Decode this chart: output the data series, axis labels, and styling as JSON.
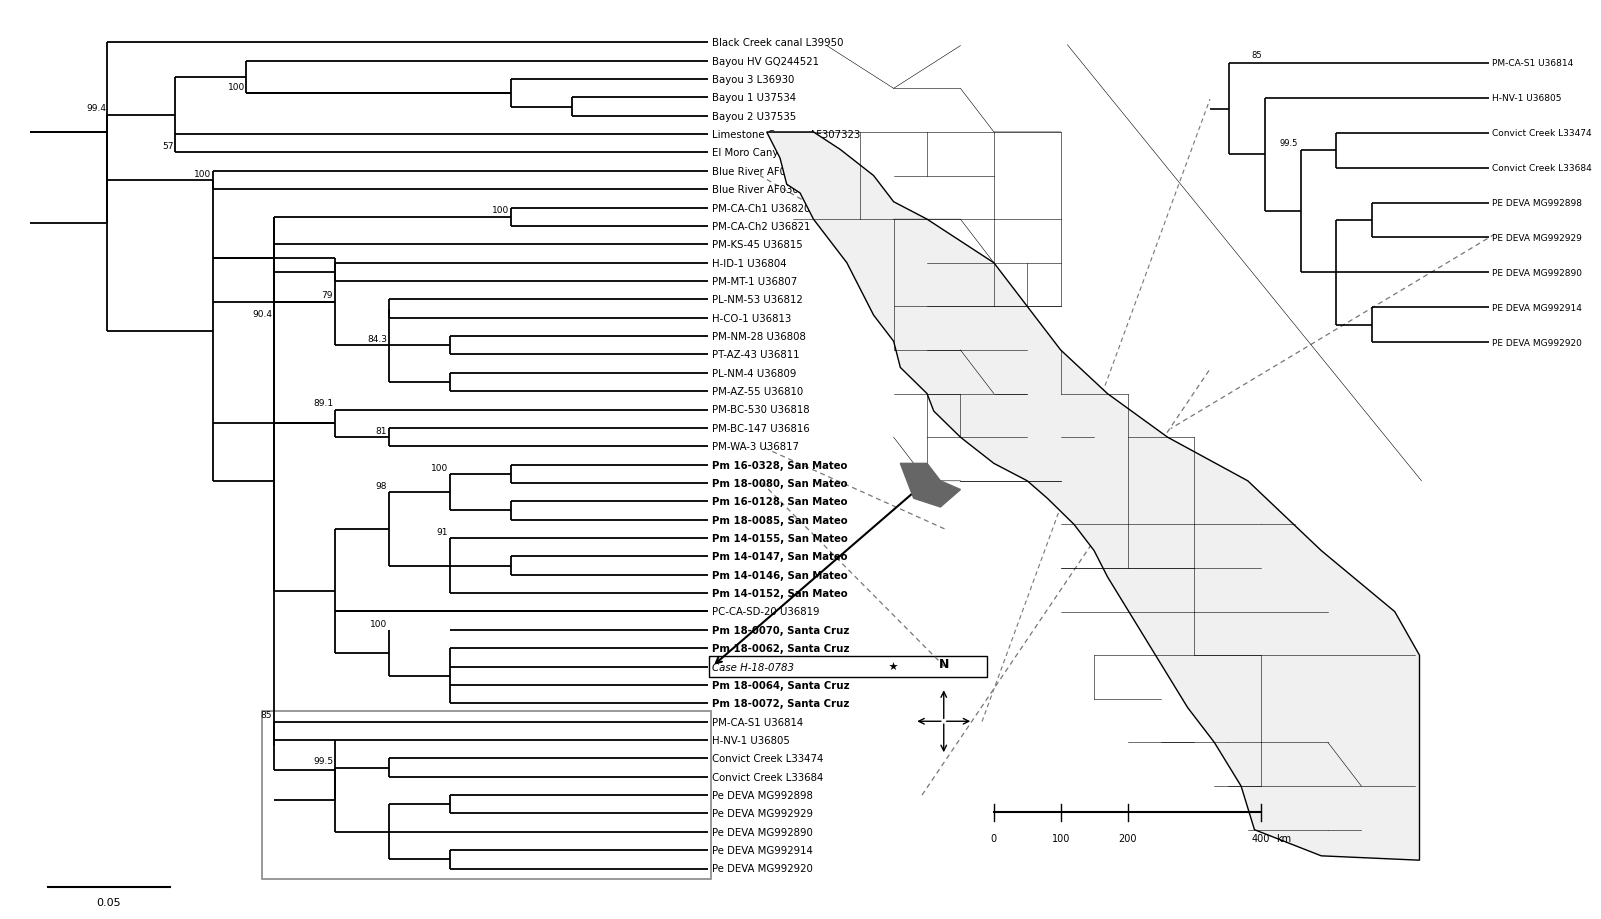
{
  "leaves": [
    "Black Creek canal L39950",
    "Bayou HV GQ244521",
    "Bayou 3 L36930",
    "Bayou 1 U37534",
    "Bayou 2 U37535",
    "Limestone Canyon AF307323",
    "El Moro Canyon U26828",
    "Blue River AF030551",
    "Blue River AF030552",
    "PM-CA-Ch1 U36820",
    "PM-CA-Ch2 U36821",
    "PM-KS-45 U36815",
    "H-ID-1 U36804",
    "PM-MT-1 U36807",
    "PL-NM-53 U36812",
    "H-CO-1 U36813",
    "PM-NM-28 U36808",
    "PT-AZ-43 U36811",
    "PL-NM-4 U36809",
    "PM-AZ-55 U36810",
    "PM-BC-530 U36818",
    "PM-BC-147 U36816",
    "PM-WA-3 U36817",
    "Pm 16-0328, San Mateo",
    "Pm 18-0080, San Mateo",
    "Pm 16-0128, San Mateo",
    "Pm 18-0085, San Mateo",
    "Pm 14-0155, San Mateo",
    "Pm 14-0147, San Mateo",
    "Pm 14-0146, San Mateo",
    "Pm 14-0152, San Mateo",
    "PC-CA-SD-20 U36819",
    "Pm 18-0070, Santa Cruz",
    "Pm 18-0062, Santa Cruz",
    "Case H-18-0783",
    "Pm 18-0064, Santa Cruz",
    "Pm 18-0072, Santa Cruz",
    "PM-CA-S1 U36814",
    "H-NV-1 U36805",
    "Convict Creek L33474",
    "Convict Creek L33684",
    "Pe DEVA MG992898",
    "Pe DEVA MG992929",
    "Pe DEVA MG992890",
    "Pe DEVA MG992914",
    "Pe DEVA MG992920"
  ],
  "bold_leaves": [
    "Pm 16-0328, San Mateo",
    "Pm 18-0080, San Mateo",
    "Pm 16-0128, San Mateo",
    "Pm 18-0085, San Mateo",
    "Pm 14-0155, San Mateo",
    "Pm 14-0147, San Mateo",
    "Pm 14-0146, San Mateo",
    "Pm 14-0152, San Mateo",
    "Pm 18-0070, Santa Cruz",
    "Pm 18-0062, Santa Cruz",
    "Pm 18-0064, Santa Cruz",
    "Pm 18-0072, Santa Cruz"
  ],
  "case_leaf": "Case H-18-0783",
  "grey_box_leaves_main": [
    "PM-CA-S1 U36814",
    "H-NV-1 U36805",
    "Convict Creek L33474",
    "Convict Creek L33684",
    "Pe DEVA MG992898",
    "Pe DEVA MG992929",
    "Pe DEVA MG992890",
    "Pe DEVA MG992914",
    "Pe DEVA MG992920"
  ],
  "inset_leaves": [
    "PM-CA-S1 U36814",
    "H-NV-1 U36805",
    "Convict Creek L33474",
    "Convict Creek L33684",
    "PE DEVA MG992898",
    "PE DEVA MG992929",
    "PE DEVA MG992890",
    "PE DEVA MG992914",
    "PE DEVA MG992920"
  ]
}
